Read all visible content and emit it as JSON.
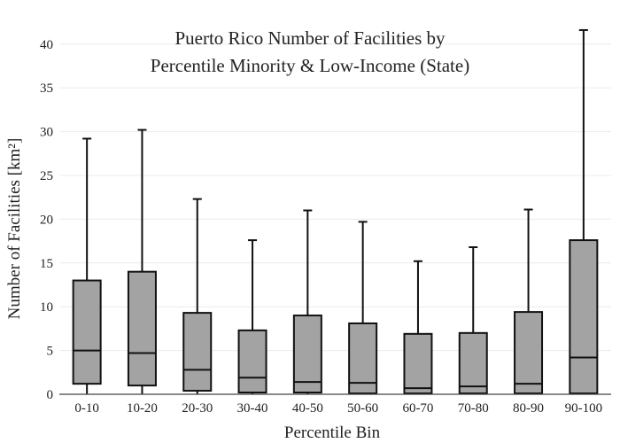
{
  "chart_data": {
    "type": "box",
    "title_line1": "Puerto Rico Number of Facilities by",
    "title_line2": "Percentile Minority & Low-Income (State)",
    "xlabel": "Percentile Bin",
    "ylabel": "Number of Facilities  [km²]",
    "ylim": [
      0,
      42
    ],
    "yticks": [
      0,
      5,
      10,
      15,
      20,
      25,
      30,
      35,
      40
    ],
    "grid": true,
    "colors": {
      "box_fill": "#a3a3a3",
      "stroke": "#111111"
    },
    "categories": [
      "0-10",
      "10-20",
      "20-30",
      "30-40",
      "40-50",
      "50-60",
      "60-70",
      "70-80",
      "80-90",
      "90-100"
    ],
    "boxes": [
      {
        "min": 0,
        "q1": 1.2,
        "median": 5.0,
        "q3": 13.0,
        "max": 29.2
      },
      {
        "min": 0,
        "q1": 1.0,
        "median": 4.7,
        "q3": 14.0,
        "max": 30.2
      },
      {
        "min": 0,
        "q1": 0.4,
        "median": 2.8,
        "q3": 9.3,
        "max": 22.3
      },
      {
        "min": 0,
        "q1": 0.2,
        "median": 1.9,
        "q3": 7.3,
        "max": 17.6
      },
      {
        "min": 0,
        "q1": 0.2,
        "median": 1.4,
        "q3": 9.0,
        "max": 21.0
      },
      {
        "min": 0,
        "q1": 0.1,
        "median": 1.3,
        "q3": 8.1,
        "max": 19.7
      },
      {
        "min": 0,
        "q1": 0.1,
        "median": 0.7,
        "q3": 6.9,
        "max": 15.2
      },
      {
        "min": 0,
        "q1": 0.1,
        "median": 0.9,
        "q3": 7.0,
        "max": 16.8
      },
      {
        "min": 0,
        "q1": 0.1,
        "median": 1.2,
        "q3": 9.4,
        "max": 21.1
      },
      {
        "min": 0,
        "q1": 0.1,
        "median": 4.2,
        "q3": 17.6,
        "max": 41.6
      }
    ]
  }
}
